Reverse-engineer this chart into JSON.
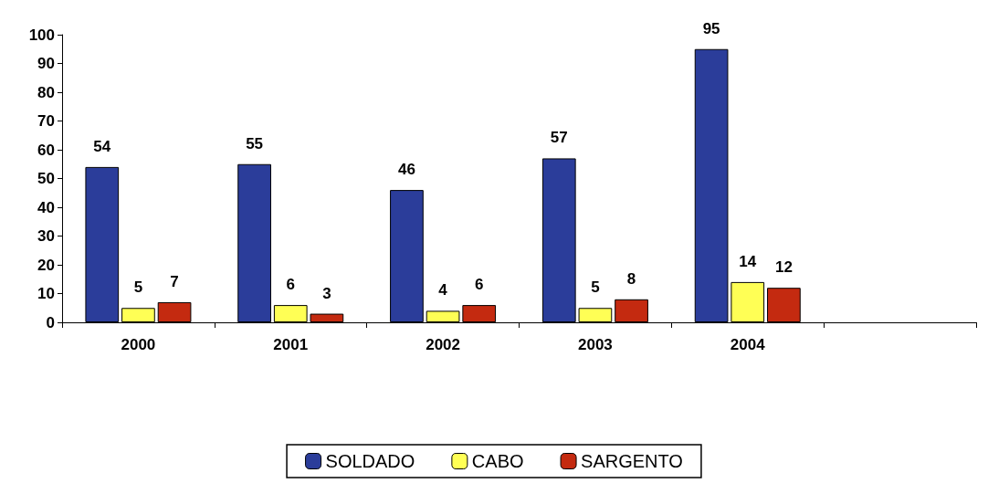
{
  "chart_data": {
    "type": "bar",
    "categories": [
      "2000",
      "2001",
      "2002",
      "2003",
      "2004",
      null
    ],
    "series": [
      {
        "name": "SOLDADO",
        "color": "#2b3d9a",
        "values": [
          54,
          55,
          46,
          57,
          95,
          null
        ]
      },
      {
        "name": "CABO",
        "color": "#ffff55",
        "values": [
          5,
          6,
          4,
          5,
          14,
          null
        ]
      },
      {
        "name": "SARGENTO",
        "color": "#c42a10",
        "values": [
          7,
          3,
          6,
          8,
          12,
          null
        ]
      }
    ],
    "ylim": [
      0,
      100
    ],
    "yticks": [
      0,
      10,
      20,
      30,
      40,
      50,
      60,
      70,
      80,
      90,
      100
    ],
    "grid": false,
    "legend": "bottom",
    "data_labels": true
  }
}
